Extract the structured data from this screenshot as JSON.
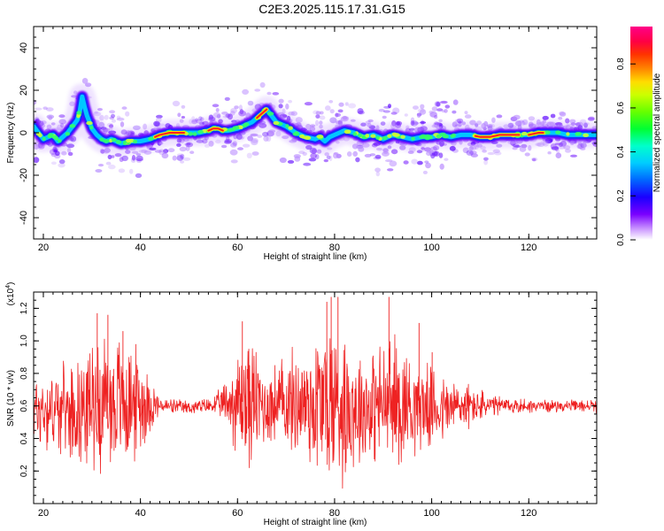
{
  "title": "C2E3.2025.115.17.31.G15",
  "chart_data": [
    {
      "type": "heatmap",
      "title": "C2E3.2025.115.17.31.G15",
      "xlabel": "Height of straight line (km)",
      "ylabel": "Frequency (Hz)",
      "xlim": [
        18,
        134
      ],
      "ylim": [
        -50,
        50
      ],
      "x_ticks": [
        20,
        40,
        60,
        80,
        100,
        120
      ],
      "y_ticks": [
        -40,
        -20,
        0,
        20,
        40
      ],
      "colorbar": {
        "label": "Normalized spectral amplitude",
        "range": [
          0,
          0.97
        ],
        "ticks": [
          "0.0",
          "0.2",
          "0.4",
          "0.6",
          "0.8"
        ],
        "colors": [
          "#ffffff",
          "#cc99ff",
          "#7a00ff",
          "#1a00ff",
          "#0066ff",
          "#00ccff",
          "#00ffcc",
          "#00ff33",
          "#66ff00",
          "#ccff00",
          "#ffdd00",
          "#ff8800",
          "#ff3300",
          "#ff0044",
          "#ff0088"
        ]
      },
      "ridge": {
        "x": [
          18,
          19,
          20,
          21,
          22,
          23,
          24,
          25,
          26,
          27,
          27.5,
          28,
          28.5,
          29,
          30,
          31,
          32,
          33,
          34,
          35,
          36,
          38,
          40,
          42,
          44,
          46,
          48,
          50,
          52,
          54,
          55,
          56,
          57,
          58,
          60,
          62,
          63,
          64,
          65,
          66,
          67,
          68,
          70,
          72,
          74,
          76,
          77,
          78,
          79,
          80,
          81,
          82,
          84,
          86,
          88,
          90,
          92,
          94,
          96,
          98,
          100,
          102,
          104,
          106,
          108,
          110,
          112,
          114,
          116,
          118,
          120,
          122,
          124,
          126,
          128,
          130,
          132,
          134
        ],
        "y": [
          3,
          0,
          -3,
          -2,
          -1,
          -4,
          -2,
          0,
          3,
          6,
          10,
          17,
          12,
          8,
          2,
          -1,
          -3,
          -4,
          -3,
          -4,
          -5,
          -4,
          -4,
          -3,
          -1,
          0,
          0,
          0,
          0,
          1,
          2,
          2,
          1,
          1,
          2,
          4,
          5,
          7,
          9,
          11,
          8,
          5,
          3,
          0,
          -2,
          -3,
          -2,
          -4,
          -2,
          -1,
          0,
          1,
          0,
          -2,
          -1,
          -3,
          -1,
          -2,
          -3,
          -2,
          -2,
          -1,
          -2,
          -1,
          -1,
          -2,
          -2,
          -1,
          -1,
          -1,
          -1,
          0,
          0,
          0,
          -1,
          -1,
          -1,
          -1
        ],
        "hot_segments": [
          [
            43,
            49
          ],
          [
            54,
            57
          ],
          [
            64,
            66
          ],
          [
            109,
            118
          ],
          [
            120,
            123
          ]
        ]
      }
    },
    {
      "type": "line",
      "xlabel": "Height of straight line (km)",
      "ylabel": "SNR (10 * v/v)",
      "y_multiplier": "x10^4",
      "xlim": [
        18,
        134
      ],
      "ylim": [
        0,
        1.3
      ],
      "x_ticks": [
        20,
        40,
        60,
        80,
        100,
        120
      ],
      "y_ticks": [
        0.2,
        0.4,
        0.6,
        0.8,
        1.0,
        1.2
      ],
      "series": [
        {
          "color": "#ee2222",
          "baseline": {
            "x": [
              18,
              24,
              28,
              30,
              34,
              36,
              38,
              40,
              44,
              50,
              54,
              58,
              60,
              62,
              64,
              66,
              70,
              74,
              76,
              78,
              80,
              82,
              84,
              86,
              88,
              90,
              92,
              94,
              98,
              102,
              106,
              110,
              116,
              124,
              134
            ],
            "y": [
              0.58,
              0.58,
              0.58,
              0.62,
              0.62,
              0.62,
              0.62,
              0.62,
              0.6,
              0.59,
              0.6,
              0.62,
              0.62,
              0.63,
              0.62,
              0.6,
              0.62,
              0.62,
              0.62,
              0.62,
              0.62,
              0.61,
              0.6,
              0.6,
              0.6,
              0.61,
              0.62,
              0.62,
              0.6,
              0.58,
              0.6,
              0.6,
              0.6,
              0.6,
              0.6
            ]
          },
          "spread": {
            "x": [
              18,
              20,
              22,
              24,
              26,
              28,
              30,
              32,
              34,
              36,
              38,
              40,
              42,
              44,
              48,
              52,
              55,
              57,
              59,
              61,
              62,
              64,
              66,
              68,
              70,
              72,
              74,
              76,
              78,
              80,
              82,
              84,
              86,
              88,
              90,
              92,
              94,
              96,
              98,
              100,
              102,
              104,
              106,
              108,
              110,
              112,
              116,
              120,
              125,
              130,
              134
            ],
            "y": [
              0.25,
              0.3,
              0.28,
              0.3,
              0.32,
              0.38,
              0.42,
              0.48,
              0.5,
              0.47,
              0.42,
              0.38,
              0.2,
              0.06,
              0.05,
              0.05,
              0.06,
              0.12,
              0.3,
              0.45,
              0.5,
              0.38,
              0.28,
              0.3,
              0.35,
              0.38,
              0.42,
              0.55,
              0.6,
              0.62,
              0.55,
              0.45,
              0.42,
              0.4,
              0.45,
              0.5,
              0.45,
              0.35,
              0.3,
              0.28,
              0.25,
              0.22,
              0.2,
              0.15,
              0.12,
              0.08,
              0.06,
              0.05,
              0.04,
              0.04,
              0.05
            ]
          },
          "peaks": [
            {
              "x": 31.1,
              "y": 1.17
            },
            {
              "x": 33.3,
              "y": 1.16
            },
            {
              "x": 36.4,
              "y": 1.06
            },
            {
              "x": 61.0,
              "y": 1.12
            },
            {
              "x": 78.4,
              "y": 1.24
            },
            {
              "x": 79.3,
              "y": 1.27
            },
            {
              "x": 80.7,
              "y": 1.27
            },
            {
              "x": 91.2,
              "y": 1.27
            },
            {
              "x": 97.4,
              "y": 1.11
            },
            {
              "x": 100.1,
              "y": 0.93
            }
          ]
        }
      ]
    }
  ]
}
